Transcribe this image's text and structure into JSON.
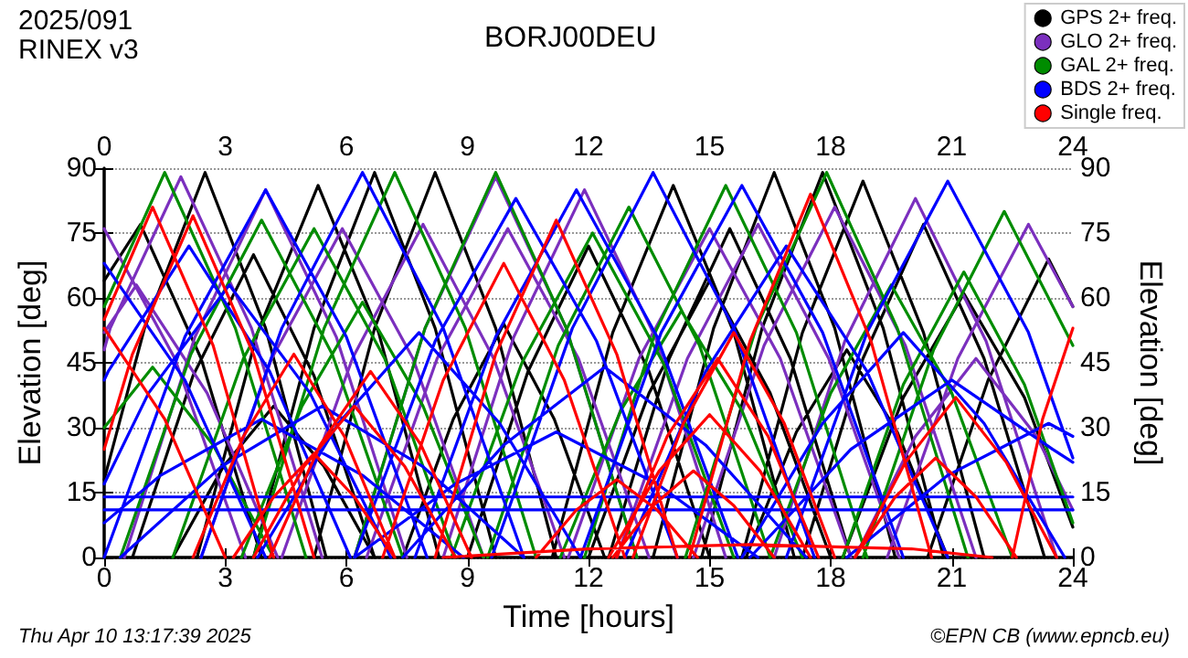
{
  "chart_data": {
    "type": "line",
    "title": "BORJ00DEU",
    "xlabel": "Time [hours]",
    "ylabel": "Elevation [deg]",
    "y2label": "Elevation [deg]",
    "annotations": [
      "2025/091",
      "RINEX v3",
      "Thu Apr 10 13:17:39 2025",
      "©EPN CB (www.epncb.eu)"
    ],
    "xlim": [
      0,
      24
    ],
    "xticks": [
      0,
      3,
      6,
      9,
      12,
      15,
      18,
      21,
      24
    ],
    "x2lim": [
      0,
      24
    ],
    "x2ticks": [
      0,
      3,
      6,
      9,
      12,
      15,
      18,
      21,
      24
    ],
    "ylim": [
      0,
      90
    ],
    "yticks": [
      0,
      15,
      30,
      45,
      60,
      75,
      90
    ],
    "y2lim": [
      0,
      90
    ],
    "y2ticks": [
      0,
      15,
      30,
      45,
      60,
      75,
      90
    ],
    "grid": "y",
    "legend": "top right",
    "marker": "none",
    "line_style": "solid",
    "series": [
      {
        "name": "GPS 2+ freq.",
        "color": "#000000",
        "x": [
          0,
          0.9,
          2.4,
          3.9,
          null,
          0,
          1,
          2.5,
          4,
          5.5,
          null,
          0.7,
          2.2,
          3.7,
          5.2,
          6.7,
          null,
          1.7,
          2.95,
          4.2,
          5.45,
          6.7,
          null,
          2.3,
          3.8,
          5.3,
          6.8,
          8.3,
          null,
          3.7,
          5.2,
          6.7,
          8.2,
          9.7,
          null,
          5.2,
          6.7,
          8.2,
          9.7,
          11.2,
          null,
          7.4,
          8.65,
          9.9,
          11.15,
          12.4,
          null,
          9,
          10.5,
          12,
          13.5,
          15,
          null,
          11.1,
          12.6,
          14.1,
          15.6,
          17.1,
          null,
          12,
          13.5,
          15,
          16.5,
          18,
          null,
          12.5,
          14,
          15.5,
          17,
          18.5,
          null,
          13.6,
          15.1,
          16.6,
          18.1,
          19.6,
          null,
          14.8,
          16.3,
          17.8,
          19.3,
          20.8,
          null,
          15.9,
          17.15,
          18.4,
          19.65,
          20.9,
          null,
          15.8,
          17.3,
          18.8,
          20.3,
          21.8,
          null,
          17.3,
          18.8,
          20.3,
          21.8,
          23.3,
          null,
          18.3,
          19.8,
          21.3,
          22.8,
          24,
          null,
          20.4,
          21.9,
          23.4,
          24
        ],
        "values": [
          64,
          77,
          46,
          0,
          null,
          18,
          53,
          89,
          53,
          0,
          null,
          0,
          42,
          70,
          42,
          0,
          null,
          0,
          21,
          35,
          21,
          0,
          null,
          0,
          52,
          86,
          52,
          0,
          null,
          0,
          53,
          89,
          53,
          0,
          null,
          0,
          53,
          89,
          53,
          0,
          null,
          0,
          32,
          54,
          32,
          0,
          null,
          0,
          43,
          72,
          43,
          0,
          null,
          0,
          52,
          86,
          52,
          0,
          null,
          0,
          38,
          64,
          38,
          0,
          null,
          0,
          46,
          76,
          46,
          0,
          null,
          0,
          53,
          89,
          53,
          0,
          null,
          0,
          53,
          89,
          53,
          0,
          null,
          0,
          29,
          48,
          29,
          0,
          null,
          0,
          52,
          87,
          52,
          0,
          null,
          0,
          46,
          77,
          46,
          0,
          null,
          0,
          37,
          61,
          37,
          7,
          null,
          0,
          41,
          69,
          58
        ]
      },
      {
        "name": "GLO 2+ freq.",
        "color": "#7b2fbe",
        "x": [
          0,
          1.75,
          3.5,
          null,
          0,
          0.8,
          2.55,
          4.3,
          null,
          0,
          0.15,
          1.9,
          3.65,
          5.4,
          null,
          0.5,
          2.25,
          4,
          5.75,
          7.5,
          null,
          2.4,
          4.15,
          5.9,
          7.65,
          9.4,
          null,
          4.4,
          6.15,
          7.9,
          9.65,
          11.4,
          null,
          6.2,
          7.95,
          9.7,
          11.45,
          13.2,
          null,
          6.5,
          8.25,
          10,
          11.75,
          13.5,
          null,
          8.4,
          10.15,
          11.9,
          13.65,
          15.4,
          null,
          11.5,
          13.25,
          15,
          16.75,
          18.5,
          null,
          12.7,
          14.45,
          16.2,
          17.95,
          19.7,
          null,
          14.6,
          16.35,
          18.1,
          19.85,
          21.6,
          null,
          16.6,
          18.35,
          20.1,
          21.85,
          23.6,
          null,
          18.6,
          20.1,
          21.6,
          23.1,
          24,
          null,
          19.4,
          21.15,
          22.9,
          24
        ],
        "values": [
          76,
          46,
          0,
          null,
          52,
          63,
          38,
          0,
          null,
          48,
          53,
          88,
          53,
          0,
          null,
          0,
          51,
          85,
          51,
          0,
          null,
          0,
          46,
          76,
          46,
          0,
          null,
          0,
          46,
          77,
          46,
          0,
          null,
          0,
          53,
          88,
          53,
          0,
          null,
          0,
          46,
          76,
          46,
          0,
          null,
          0,
          51,
          85,
          51,
          0,
          null,
          0,
          46,
          76,
          46,
          0,
          null,
          0,
          46,
          77,
          46,
          0,
          null,
          0,
          49,
          81,
          49,
          0,
          null,
          0,
          50,
          83,
          50,
          0,
          null,
          0,
          28,
          46,
          28,
          11,
          null,
          0,
          46,
          77,
          58
        ]
      },
      {
        "name": "GAL 2+ freq.",
        "color": "#008c00",
        "x": [
          0,
          1.2,
          2.7,
          4.2,
          null,
          0,
          1.5,
          3.25,
          5,
          null,
          0.4,
          2.15,
          3.9,
          5.65,
          7.4,
          null,
          1.7,
          3.45,
          5.2,
          6.95,
          8.7,
          null,
          3.4,
          4.9,
          6.4,
          7.9,
          9.4,
          null,
          3.7,
          5.45,
          7.2,
          8.95,
          10.7,
          null,
          6.2,
          7.95,
          9.7,
          11.45,
          13.2,
          null,
          8.6,
          10.35,
          12.1,
          13.85,
          15.6,
          null,
          9.5,
          11.25,
          13,
          14.75,
          16.5,
          null,
          11.3,
          12.8,
          14.3,
          15.8,
          17.3,
          null,
          11.9,
          13.65,
          15.4,
          17.15,
          18.9,
          null,
          14.4,
          16.15,
          17.9,
          19.65,
          21.4,
          null,
          16.5,
          18,
          19.5,
          21,
          22.5,
          null,
          18.3,
          19.8,
          21.3,
          22.8,
          24,
          null,
          18.8,
          20.55,
          22.3,
          24
        ],
        "values": [
          30,
          44,
          26,
          0,
          null,
          58,
          89,
          53,
          0,
          null,
          0,
          47,
          78,
          47,
          0,
          null,
          0,
          46,
          76,
          46,
          0,
          null,
          0,
          35,
          59,
          35,
          0,
          null,
          0,
          53,
          89,
          53,
          0,
          null,
          0,
          53,
          89,
          53,
          0,
          null,
          0,
          45,
          75,
          45,
          0,
          null,
          0,
          49,
          81,
          49,
          0,
          null,
          0,
          34,
          57,
          34,
          0,
          null,
          0,
          52,
          86,
          52,
          0,
          null,
          0,
          53,
          89,
          53,
          0,
          null,
          0,
          38,
          63,
          38,
          0,
          null,
          0,
          40,
          66,
          40,
          8,
          null,
          0,
          48,
          80,
          49
        ]
      },
      {
        "name": "BDS 2+ freq.",
        "color": "#0000ff",
        "x": [
          0,
          2,
          4,
          null,
          0,
          0.1,
          2.1,
          4.1,
          6.1,
          null,
          0,
          1.1,
          3.1,
          5.1,
          7.1,
          null,
          0,
          1.4,
          3.9,
          6.4,
          8.9,
          null,
          0,
          2,
          4,
          6,
          8,
          null,
          0.4,
          2.9,
          5.4,
          7.9,
          10.4,
          null,
          2.4,
          4.4,
          6.4,
          8.4,
          10.4,
          null,
          3.8,
          5.8,
          7.8,
          9.8,
          11.8,
          null,
          6.2,
          8.2,
          10.2,
          12.2,
          14.2,
          null,
          6.2,
          8.7,
          11.2,
          13.7,
          16.2,
          null,
          7.7,
          9.7,
          11.7,
          13.7,
          15.7,
          null,
          7.4,
          9.9,
          12.4,
          14.9,
          17.4,
          null,
          9.6,
          11.6,
          13.6,
          15.6,
          17.6,
          null,
          11.8,
          13.8,
          15.8,
          17.8,
          19.8,
          null,
          12.9,
          14.9,
          16.9,
          18.9,
          20.9,
          null,
          15.8,
          17.8,
          19.8,
          21.8,
          23.8,
          null,
          16.9,
          18.9,
          20.9,
          22.9,
          24,
          null,
          16,
          18.5,
          21,
          23.5,
          24,
          null,
          18.4,
          20.9,
          23.4,
          24
        ],
        "values": [
          68,
          41,
          0,
          null,
          41,
          43,
          72,
          43,
          0,
          null,
          17,
          38,
          63,
          38,
          0,
          null,
          8,
          19,
          32,
          19,
          0,
          null,
          0,
          51,
          85,
          51,
          0,
          null,
          0,
          21,
          35,
          21,
          0,
          null,
          0,
          53,
          89,
          53,
          0,
          null,
          0,
          31,
          52,
          31,
          0,
          null,
          0,
          50,
          83,
          50,
          0,
          null,
          0,
          17,
          29,
          17,
          0,
          null,
          0,
          51,
          85,
          51,
          0,
          null,
          0,
          26,
          44,
          26,
          0,
          null,
          0,
          53,
          89,
          53,
          0,
          null,
          0,
          52,
          86,
          52,
          0,
          null,
          0,
          43,
          72,
          43,
          0,
          null,
          0,
          31,
          52,
          31,
          0,
          null,
          0,
          52,
          87,
          52,
          23,
          null,
          0,
          25,
          41,
          25,
          22,
          null,
          0,
          19,
          31,
          28
        ]
      },
      {
        "color": "#0000ff",
        "x": [
          0,
          24
        ],
        "values": [
          14,
          14
        ]
      },
      {
        "color": "#0000ff",
        "x": [
          0,
          24
        ],
        "values": [
          11,
          11
        ]
      },
      {
        "name": "Single freq.",
        "color": "#ff0000",
        "x": [
          0,
          1.5,
          3,
          null,
          0,
          1.2,
          2.7,
          4.2,
          null,
          0,
          0.7,
          2.2,
          3.7,
          5.2,
          null,
          2.2,
          3.45,
          4.7,
          5.95,
          7.2,
          null,
          3.2,
          4.2,
          5.2,
          6.2,
          7.2,
          null,
          3.7,
          4.95,
          6.2,
          7.45,
          8.7,
          null,
          4.1,
          5.35,
          6.6,
          7.85,
          9.1,
          null,
          6.9,
          8.4,
          9.9,
          11.4,
          12.9,
          null,
          8.2,
          9.7,
          11.2,
          12.7,
          14.2,
          null,
          10.7,
          11.7,
          12.7,
          13.7,
          14.7,
          null,
          12.6,
          13.6,
          14.6,
          15.6,
          16.6,
          null,
          12.5,
          13.75,
          15,
          16.25,
          17.5,
          null,
          12.7,
          13.95,
          15.2,
          16.45,
          17.7,
          null,
          13.1,
          14.35,
          15.6,
          16.85,
          18.1,
          null,
          14.5,
          16,
          17.5,
          19,
          20.5,
          null,
          18.6,
          19.6,
          20.6,
          21.6,
          22.6,
          null,
          18.6,
          19.85,
          21.1,
          22.35,
          23.6,
          null,
          22.5,
          23.25,
          24,
          null,
          8.4,
          12,
          16,
          20,
          22
        ],
        "values": [
          53,
          32,
          0,
          null,
          55,
          81,
          49,
          0,
          null,
          25,
          47,
          79,
          47,
          0,
          null,
          0,
          28,
          47,
          28,
          0,
          null,
          0,
          14,
          24,
          14,
          0,
          null,
          0,
          21,
          35,
          21,
          0,
          null,
          0,
          26,
          43,
          26,
          0,
          null,
          0,
          41,
          68,
          41,
          0,
          null,
          0,
          47,
          78,
          47,
          0,
          null,
          0,
          11,
          18,
          11,
          0,
          null,
          0,
          12,
          20,
          12,
          0,
          null,
          0,
          20,
          33,
          20,
          0,
          null,
          0,
          28,
          46,
          28,
          0,
          null,
          0,
          31,
          52,
          31,
          0,
          null,
          0,
          50,
          84,
          50,
          0,
          null,
          0,
          14,
          23,
          14,
          0,
          null,
          0,
          22,
          37,
          22,
          0,
          null,
          0,
          32,
          53,
          null,
          0,
          2,
          3,
          2,
          0
        ]
      }
    ]
  }
}
